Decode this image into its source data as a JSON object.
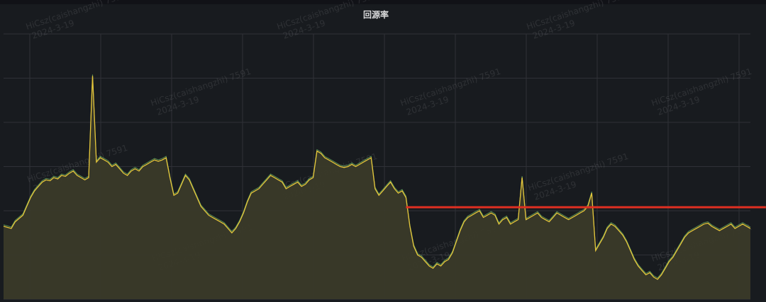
{
  "panel": {
    "title": "回源率"
  },
  "watermark": {
    "line1": "HiCsz(caishangzhi) 7591",
    "line2": "2024-3-19"
  },
  "colors": {
    "background": "#181b1f",
    "grid": "#2f3137",
    "series_line": "#e6c53a",
    "series_line_2": "#73bf69",
    "series_fill": "#3a3a29",
    "annotation": "#e02f21"
  },
  "chart_data": {
    "type": "area",
    "title": "回源率",
    "xlabel": "",
    "ylabel": "",
    "grid": true,
    "x_gridlines": 10,
    "y_gridlines": 6,
    "ylim": [
      0,
      6
    ],
    "series": [
      {
        "points": [
          [
            0,
            1.65
          ],
          [
            2,
            1.6
          ],
          [
            3,
            1.75
          ],
          [
            5,
            1.9
          ],
          [
            6,
            2.1
          ],
          [
            7,
            2.3
          ],
          [
            8,
            2.45
          ],
          [
            9,
            2.55
          ],
          [
            10,
            2.65
          ],
          [
            11,
            2.7
          ],
          [
            12,
            2.68
          ],
          [
            13,
            2.75
          ],
          [
            14,
            2.72
          ],
          [
            15,
            2.8
          ],
          [
            16,
            2.78
          ],
          [
            17,
            2.85
          ],
          [
            18,
            2.9
          ],
          [
            19,
            2.8
          ],
          [
            20,
            2.75
          ],
          [
            21,
            2.7
          ],
          [
            22,
            2.75
          ],
          [
            23,
            5.05
          ],
          [
            24,
            3.1
          ],
          [
            25,
            3.2
          ],
          [
            26,
            3.15
          ],
          [
            27,
            3.1
          ],
          [
            28,
            3.0
          ],
          [
            29,
            3.05
          ],
          [
            30,
            2.95
          ],
          [
            31,
            2.85
          ],
          [
            32,
            2.8
          ],
          [
            33,
            2.9
          ],
          [
            34,
            2.95
          ],
          [
            35,
            2.9
          ],
          [
            36,
            3.0
          ],
          [
            37,
            3.05
          ],
          [
            38,
            3.1
          ],
          [
            39,
            3.15
          ],
          [
            40,
            3.12
          ],
          [
            41,
            3.15
          ],
          [
            42,
            3.2
          ],
          [
            43,
            2.75
          ],
          [
            44,
            2.35
          ],
          [
            45,
            2.4
          ],
          [
            46,
            2.6
          ],
          [
            47,
            2.8
          ],
          [
            48,
            2.7
          ],
          [
            49,
            2.5
          ],
          [
            50,
            2.3
          ],
          [
            51,
            2.1
          ],
          [
            52,
            2.0
          ],
          [
            53,
            1.9
          ],
          [
            54,
            1.85
          ],
          [
            55,
            1.8
          ],
          [
            56,
            1.75
          ],
          [
            57,
            1.7
          ],
          [
            58,
            1.6
          ],
          [
            59,
            1.5
          ],
          [
            60,
            1.6
          ],
          [
            61,
            1.75
          ],
          [
            62,
            1.95
          ],
          [
            63,
            2.2
          ],
          [
            64,
            2.4
          ],
          [
            65,
            2.45
          ],
          [
            66,
            2.5
          ],
          [
            67,
            2.6
          ],
          [
            68,
            2.7
          ],
          [
            69,
            2.8
          ],
          [
            70,
            2.75
          ],
          [
            71,
            2.7
          ],
          [
            72,
            2.65
          ],
          [
            73,
            2.5
          ],
          [
            74,
            2.55
          ],
          [
            75,
            2.6
          ],
          [
            76,
            2.65
          ],
          [
            77,
            2.55
          ],
          [
            78,
            2.6
          ],
          [
            79,
            2.7
          ],
          [
            80,
            2.75
          ],
          [
            81,
            3.35
          ],
          [
            82,
            3.3
          ],
          [
            83,
            3.2
          ],
          [
            84,
            3.15
          ],
          [
            85,
            3.1
          ],
          [
            86,
            3.05
          ],
          [
            87,
            3.0
          ],
          [
            88,
            2.98
          ],
          [
            89,
            3.0
          ],
          [
            90,
            3.05
          ],
          [
            91,
            3.0
          ],
          [
            92,
            3.05
          ],
          [
            93,
            3.1
          ],
          [
            94,
            3.15
          ],
          [
            95,
            3.2
          ],
          [
            96,
            2.5
          ],
          [
            97,
            2.35
          ],
          [
            98,
            2.45
          ],
          [
            99,
            2.55
          ],
          [
            100,
            2.65
          ],
          [
            101,
            2.5
          ],
          [
            102,
            2.4
          ],
          [
            103,
            2.45
          ],
          [
            104,
            2.3
          ],
          [
            105,
            1.65
          ],
          [
            106,
            1.2
          ],
          [
            107,
            1.0
          ],
          [
            108,
            0.95
          ],
          [
            109,
            0.85
          ],
          [
            110,
            0.75
          ],
          [
            111,
            0.7
          ],
          [
            112,
            0.8
          ],
          [
            113,
            0.75
          ],
          [
            114,
            0.85
          ],
          [
            115,
            0.9
          ],
          [
            116,
            1.05
          ],
          [
            117,
            1.3
          ],
          [
            118,
            1.55
          ],
          [
            119,
            1.75
          ],
          [
            120,
            1.85
          ],
          [
            121,
            1.9
          ],
          [
            122,
            1.95
          ],
          [
            123,
            2.0
          ],
          [
            124,
            1.85
          ],
          [
            125,
            1.9
          ],
          [
            126,
            1.95
          ],
          [
            127,
            1.9
          ],
          [
            128,
            1.7
          ],
          [
            129,
            1.8
          ],
          [
            130,
            1.85
          ],
          [
            131,
            1.7
          ],
          [
            132,
            1.75
          ],
          [
            133,
            1.8
          ],
          [
            134,
            2.75
          ],
          [
            135,
            1.8
          ],
          [
            136,
            1.85
          ],
          [
            137,
            1.9
          ],
          [
            138,
            1.95
          ],
          [
            139,
            1.85
          ],
          [
            140,
            1.8
          ],
          [
            141,
            1.75
          ],
          [
            142,
            1.85
          ],
          [
            143,
            1.95
          ],
          [
            144,
            1.9
          ],
          [
            145,
            1.85
          ],
          [
            146,
            1.8
          ],
          [
            147,
            1.85
          ],
          [
            148,
            1.9
          ],
          [
            149,
            1.95
          ],
          [
            150,
            2.0
          ],
          [
            151,
            2.1
          ],
          [
            152,
            2.4
          ],
          [
            153,
            1.1
          ],
          [
            154,
            1.25
          ],
          [
            155,
            1.4
          ],
          [
            156,
            1.6
          ],
          [
            157,
            1.7
          ],
          [
            158,
            1.65
          ],
          [
            159,
            1.55
          ],
          [
            160,
            1.45
          ],
          [
            161,
            1.3
          ],
          [
            162,
            1.1
          ],
          [
            163,
            0.9
          ],
          [
            164,
            0.75
          ],
          [
            165,
            0.65
          ],
          [
            166,
            0.55
          ],
          [
            167,
            0.6
          ],
          [
            168,
            0.5
          ],
          [
            169,
            0.45
          ],
          [
            170,
            0.55
          ],
          [
            171,
            0.7
          ],
          [
            172,
            0.85
          ],
          [
            173,
            0.95
          ],
          [
            174,
            1.1
          ],
          [
            175,
            1.25
          ],
          [
            176,
            1.4
          ],
          [
            177,
            1.5
          ],
          [
            178,
            1.55
          ],
          [
            179,
            1.6
          ],
          [
            180,
            1.65
          ],
          [
            181,
            1.7
          ],
          [
            182,
            1.72
          ],
          [
            183,
            1.65
          ],
          [
            184,
            1.6
          ],
          [
            185,
            1.55
          ],
          [
            186,
            1.6
          ],
          [
            187,
            1.65
          ],
          [
            188,
            1.7
          ],
          [
            189,
            1.6
          ],
          [
            190,
            1.65
          ],
          [
            191,
            1.7
          ],
          [
            192,
            1.65
          ],
          [
            193,
            1.6
          ]
        ]
      }
    ],
    "annotations": [
      {
        "type": "horizontal-line",
        "y": 2.08,
        "x_start": 104,
        "x_end": 197,
        "color": "#e02f21"
      }
    ],
    "x_range": [
      0,
      193
    ]
  }
}
